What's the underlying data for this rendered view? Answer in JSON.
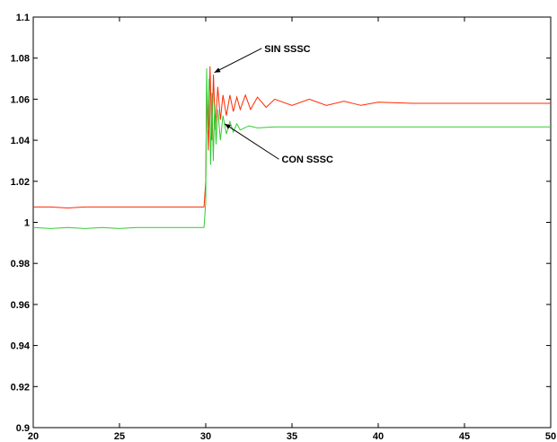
{
  "chart_data": {
    "type": "line",
    "title": "",
    "xlabel": "",
    "ylabel": "",
    "xlim": [
      20,
      50
    ],
    "ylim": [
      0.9,
      1.1
    ],
    "xticks": [
      20,
      25,
      30,
      35,
      40,
      45,
      50
    ],
    "yticks": [
      0.9,
      0.92,
      0.94,
      0.96,
      0.98,
      1,
      1.02,
      1.04,
      1.06,
      1.08,
      1.1
    ],
    "xtick_labels": [
      "20",
      "25",
      "30",
      "35",
      "40",
      "45",
      "50"
    ],
    "ytick_labels": [
      "0.9",
      "0.92",
      "0.94",
      "0.96",
      "0.98",
      "1",
      "1.02",
      "1.04",
      "1.06",
      "1.08",
      "1.1"
    ],
    "grid": false,
    "series": [
      {
        "color": "#ff2a00",
        "x": [
          20,
          21,
          22,
          23,
          24,
          25,
          26,
          27,
          28,
          29,
          29.9,
          30.0,
          30.05,
          30.15,
          30.25,
          30.35,
          30.45,
          30.55,
          30.7,
          30.85,
          31.0,
          31.2,
          31.4,
          31.6,
          31.8,
          32.0,
          32.3,
          32.6,
          33.0,
          33.5,
          34.0,
          35.0,
          36.0,
          37.0,
          38.0,
          39.0,
          40.0,
          42.0,
          45.0,
          48.0,
          50.0
        ],
        "y": [
          1.0075,
          1.0075,
          1.007,
          1.0075,
          1.0075,
          1.0075,
          1.0075,
          1.0075,
          1.0075,
          1.0075,
          1.0075,
          1.02,
          1.065,
          1.035,
          1.076,
          1.04,
          1.072,
          1.045,
          1.066,
          1.05,
          1.062,
          1.052,
          1.062,
          1.054,
          1.061,
          1.055,
          1.062,
          1.055,
          1.061,
          1.056,
          1.06,
          1.057,
          1.06,
          1.057,
          1.059,
          1.057,
          1.0585,
          1.058,
          1.058,
          1.058,
          1.058
        ]
      },
      {
        "color": "#33cc33",
        "x": [
          20,
          21,
          22,
          23,
          24,
          25,
          26,
          27,
          28,
          29,
          29.9,
          30.0,
          30.05,
          30.12,
          30.2,
          30.28,
          30.36,
          30.44,
          30.52,
          30.6,
          30.7,
          30.85,
          31.0,
          31.2,
          31.4,
          31.6,
          31.8,
          32.0,
          32.5,
          33.0,
          34.0,
          35.0,
          36.0,
          38.0,
          40.0,
          42.0,
          45.0,
          48.0,
          50.0
        ],
        "y": [
          0.9975,
          0.997,
          0.9975,
          0.997,
          0.9975,
          0.997,
          0.9975,
          0.9975,
          0.9975,
          0.9975,
          0.9975,
          1.01,
          1.075,
          1.045,
          1.07,
          1.028,
          1.063,
          1.03,
          1.058,
          1.038,
          1.055,
          1.04,
          1.052,
          1.043,
          1.049,
          1.044,
          1.048,
          1.045,
          1.047,
          1.046,
          1.0465,
          1.0465,
          1.0465,
          1.0465,
          1.0465,
          1.0465,
          1.0465,
          1.0465,
          1.0465
        ]
      }
    ],
    "annotations": [
      {
        "text": "SIN SSSC",
        "target": [
          30.5,
          1.073
        ],
        "text_pos": [
          33.4,
          1.083
        ]
      },
      {
        "text": "CON SSSC",
        "target": [
          31.1,
          1.048
        ],
        "text_pos": [
          34.4,
          1.029
        ]
      }
    ]
  }
}
